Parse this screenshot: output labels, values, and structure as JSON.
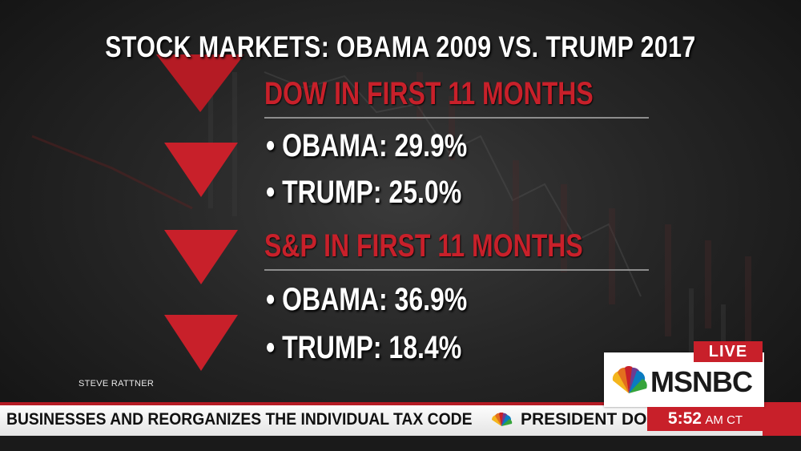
{
  "graphic": {
    "title": "STOCK MARKETS: OBAMA 2009 VS. TRUMP 2017",
    "sections": [
      {
        "heading": "DOW IN FIRST 11 MONTHS",
        "items": [
          "• OBAMA: 29.9%",
          "• TRUMP: 25.0%"
        ]
      },
      {
        "heading": "S&P IN FIRST 11 MONTHS",
        "items": [
          "• OBAMA: 36.9%",
          "• TRUMP: 18.4%"
        ]
      }
    ],
    "credit": "STEVE RATTNER",
    "accent_color": "#c8202a"
  },
  "broadcast": {
    "live_label": "LIVE",
    "network": "MSNBC",
    "ticker_text": "BUSINESSES AND REORGANIZES THE INDIVIDUAL TAX CODE",
    "ticker_text_next": "PRESIDENT DON",
    "time": "5:52",
    "time_zone": "AM CT",
    "peacock_icon": "nbc-peacock-icon",
    "ticker_bar_color": "#b51b24"
  }
}
